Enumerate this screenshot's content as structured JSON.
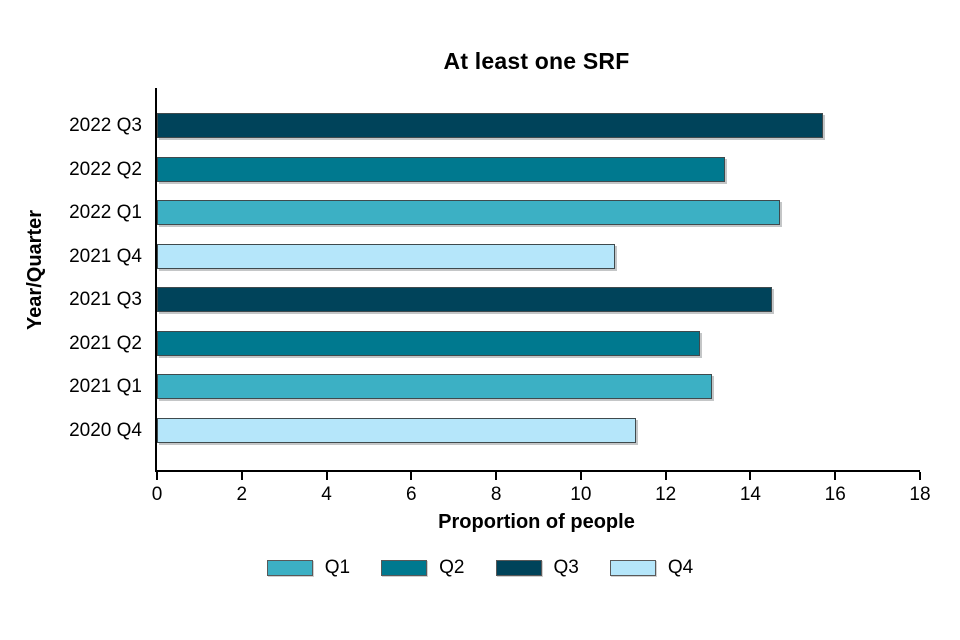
{
  "chart_data": {
    "type": "bar",
    "orientation": "horizontal",
    "title": "At least one SRF",
    "xlabel": "Proportion of people",
    "ylabel": "Year/Quarter",
    "categories": [
      "2022 Q3",
      "2022 Q2",
      "2022 Q1",
      "2021 Q4",
      "2021 Q3",
      "2021 Q2",
      "2021 Q1",
      "2020 Q4"
    ],
    "values": [
      15.7,
      13.4,
      14.7,
      10.8,
      14.5,
      12.8,
      13.1,
      11.3
    ],
    "bar_quarters": [
      "Q3",
      "Q2",
      "Q1",
      "Q4",
      "Q3",
      "Q2",
      "Q1",
      "Q4"
    ],
    "xlim": [
      0,
      18
    ],
    "xticks": [
      0,
      2,
      4,
      6,
      8,
      10,
      12,
      14,
      16,
      18
    ],
    "grid": false,
    "legend_position": "bottom",
    "legend": [
      {
        "label": "Q1",
        "color": "#3cb0c4"
      },
      {
        "label": "Q2",
        "color": "#00798f"
      },
      {
        "label": "Q3",
        "color": "#00435a"
      },
      {
        "label": "Q4",
        "color": "#b5e6fa"
      }
    ]
  }
}
